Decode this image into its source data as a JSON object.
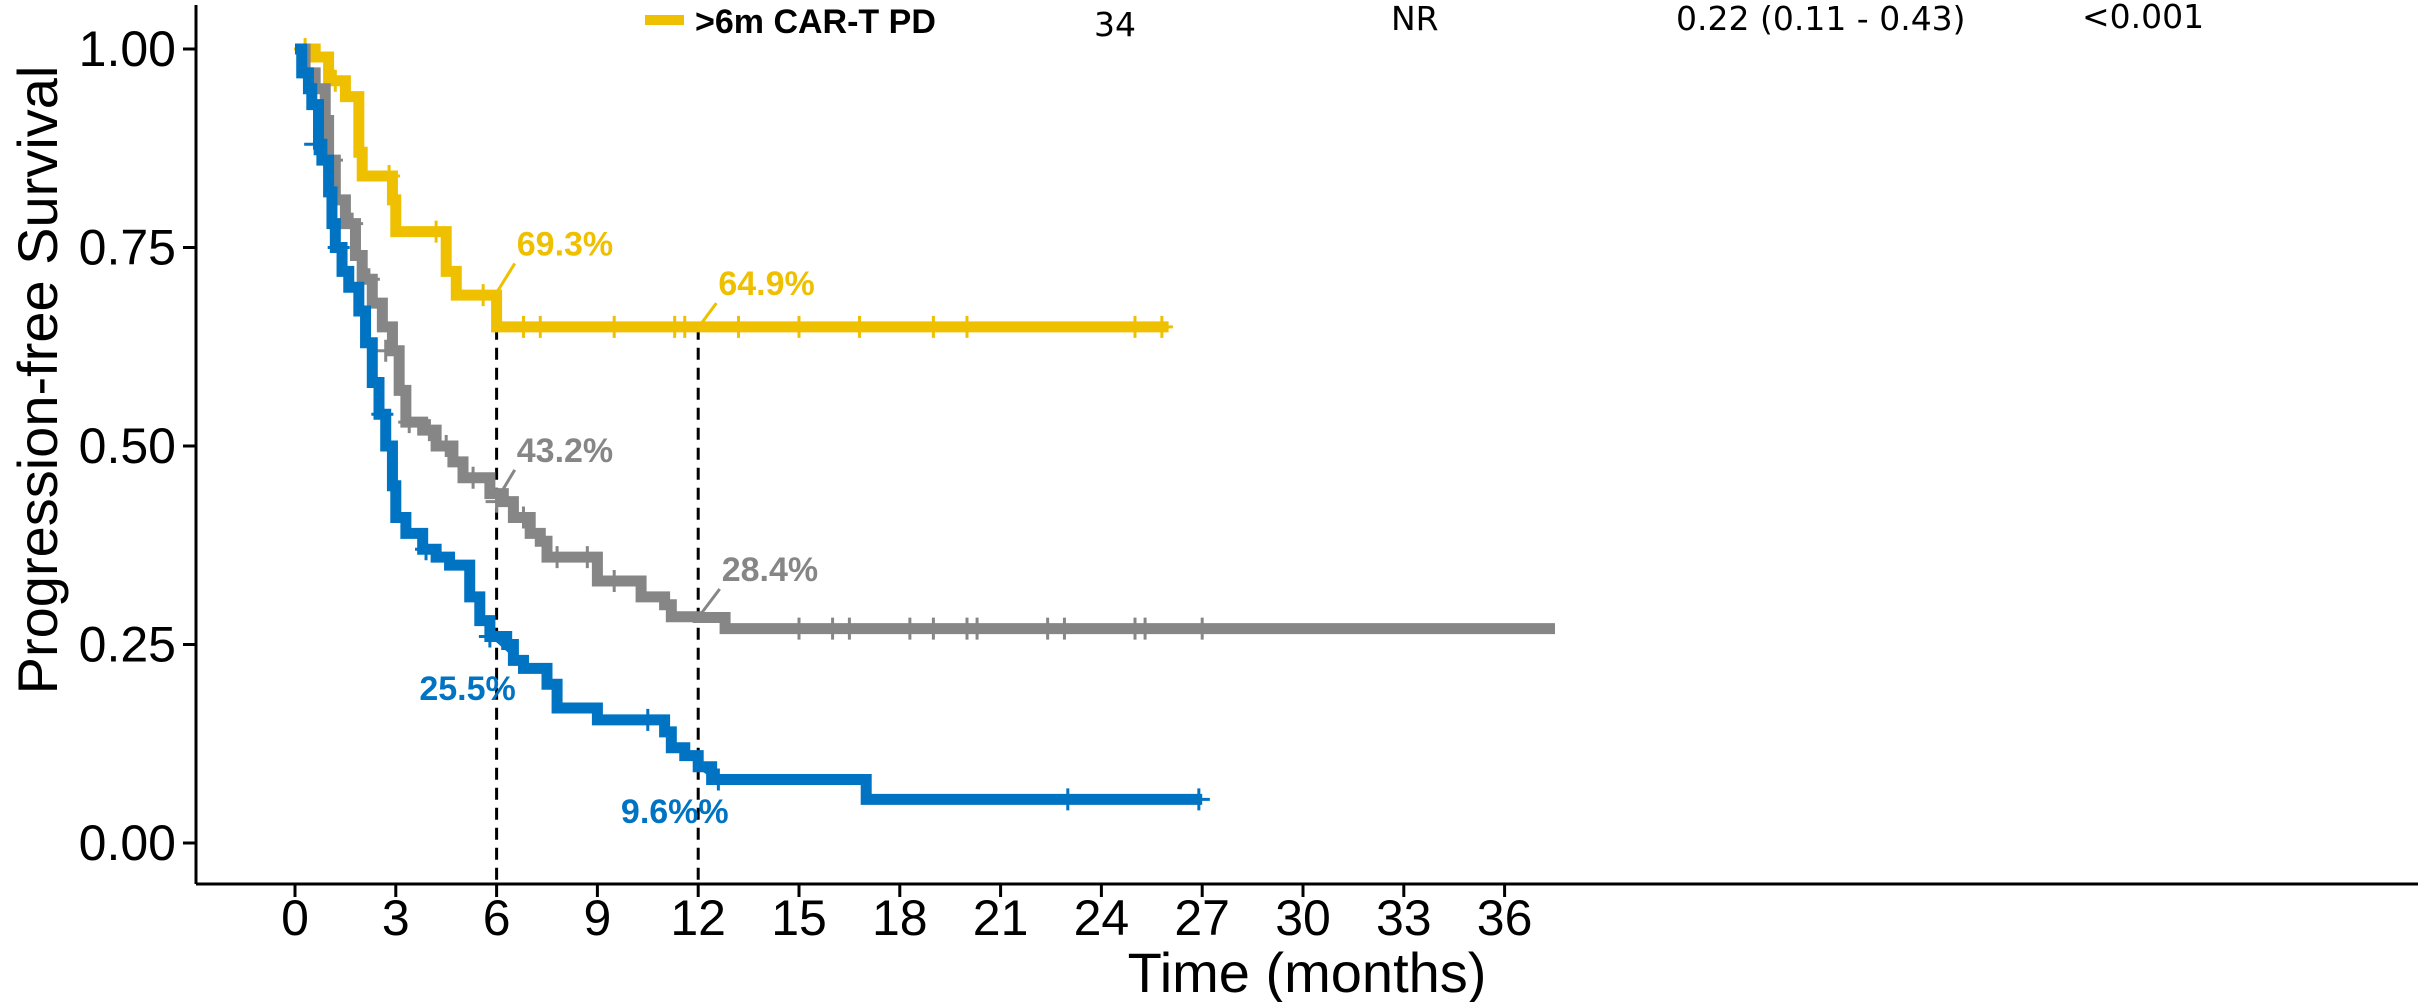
{
  "chart_data": {
    "type": "line",
    "subtype": "kaplan-meier",
    "xlabel": "Time (months)",
    "ylabel": "Progression-free Survival",
    "xlim": [
      -1,
      37.5
    ],
    "ylim": [
      -0.05,
      1.05
    ],
    "xticks": [
      0,
      3,
      6,
      9,
      12,
      15,
      18,
      21,
      24,
      27,
      30,
      33,
      36
    ],
    "yticks": [
      0.0,
      0.25,
      0.5,
      0.75,
      1.0
    ],
    "ytick_labels": [
      "0.00",
      "0.25",
      "0.50",
      "0.75",
      "1.00"
    ],
    "legend_row": {
      "name": ">6m CAR-T PD",
      "color": "#EFC000",
      "n": "34",
      "median": "NR",
      "hr_ci": "0.22 (0.11 - 0.43)",
      "p": "<0.001"
    },
    "vlines": [
      6,
      12
    ],
    "series": [
      {
        "color": "#EFC000",
        "steps": [
          [
            0,
            1.0
          ],
          [
            0.6,
            0.99
          ],
          [
            1.0,
            0.96
          ],
          [
            1.5,
            0.94
          ],
          [
            1.9,
            0.87
          ],
          [
            2.0,
            0.84
          ],
          [
            2.9,
            0.81
          ],
          [
            3.0,
            0.77
          ],
          [
            4.5,
            0.72
          ],
          [
            4.8,
            0.69
          ],
          [
            6.0,
            0.65
          ],
          [
            26.0,
            0.65
          ]
        ],
        "censors": [
          [
            0.3,
            1.0
          ],
          [
            1.2,
            0.96
          ],
          [
            2.8,
            0.84
          ],
          [
            4.2,
            0.77
          ],
          [
            5.6,
            0.69
          ],
          [
            6.8,
            0.65
          ],
          [
            7.3,
            0.65
          ],
          [
            9.5,
            0.65
          ],
          [
            11.3,
            0.65
          ],
          [
            11.6,
            0.65
          ],
          [
            13.2,
            0.65
          ],
          [
            15.0,
            0.65
          ],
          [
            16.8,
            0.65
          ],
          [
            19.0,
            0.65
          ],
          [
            20.0,
            0.65
          ],
          [
            25.0,
            0.65
          ],
          [
            25.8,
            0.65
          ]
        ]
      },
      {
        "color": "#868686",
        "steps": [
          [
            0,
            1.0
          ],
          [
            0.3,
            0.97
          ],
          [
            0.6,
            0.95
          ],
          [
            0.9,
            0.91
          ],
          [
            1.0,
            0.86
          ],
          [
            1.2,
            0.81
          ],
          [
            1.5,
            0.78
          ],
          [
            1.8,
            0.74
          ],
          [
            2.0,
            0.71
          ],
          [
            2.3,
            0.68
          ],
          [
            2.6,
            0.65
          ],
          [
            2.9,
            0.62
          ],
          [
            3.1,
            0.57
          ],
          [
            3.3,
            0.53
          ],
          [
            3.8,
            0.52
          ],
          [
            4.2,
            0.5
          ],
          [
            4.7,
            0.48
          ],
          [
            5.0,
            0.46
          ],
          [
            5.8,
            0.44
          ],
          [
            6.2,
            0.43
          ],
          [
            6.5,
            0.41
          ],
          [
            7.0,
            0.39
          ],
          [
            7.3,
            0.38
          ],
          [
            7.5,
            0.36
          ],
          [
            8.0,
            0.36
          ],
          [
            9.0,
            0.33
          ],
          [
            10.0,
            0.33
          ],
          [
            10.3,
            0.31
          ],
          [
            11.0,
            0.3
          ],
          [
            11.2,
            0.285
          ],
          [
            12.0,
            0.284
          ],
          [
            12.8,
            0.27
          ],
          [
            37.5,
            0.27
          ]
        ],
        "censors": [
          [
            0.6,
            0.95
          ],
          [
            1.1,
            0.86
          ],
          [
            1.7,
            0.78
          ],
          [
            2.2,
            0.71
          ],
          [
            2.7,
            0.62
          ],
          [
            3.4,
            0.53
          ],
          [
            4.0,
            0.52
          ],
          [
            4.5,
            0.5
          ],
          [
            5.3,
            0.46
          ],
          [
            6.0,
            0.43
          ],
          [
            6.8,
            0.41
          ],
          [
            7.8,
            0.36
          ],
          [
            8.7,
            0.36
          ],
          [
            9.5,
            0.33
          ],
          [
            15.0,
            0.27
          ],
          [
            16.0,
            0.27
          ],
          [
            16.5,
            0.27
          ],
          [
            18.3,
            0.27
          ],
          [
            19.0,
            0.27
          ],
          [
            20.0,
            0.27
          ],
          [
            20.3,
            0.27
          ],
          [
            22.4,
            0.27
          ],
          [
            22.9,
            0.27
          ],
          [
            25.0,
            0.27
          ],
          [
            25.3,
            0.27
          ],
          [
            27.0,
            0.27
          ]
        ]
      },
      {
        "color": "#0073C2",
        "steps": [
          [
            0,
            1.0
          ],
          [
            0.2,
            0.97
          ],
          [
            0.4,
            0.95
          ],
          [
            0.5,
            0.93
          ],
          [
            0.7,
            0.88
          ],
          [
            0.8,
            0.86
          ],
          [
            1.0,
            0.82
          ],
          [
            1.1,
            0.78
          ],
          [
            1.2,
            0.75
          ],
          [
            1.4,
            0.72
          ],
          [
            1.6,
            0.7
          ],
          [
            1.9,
            0.67
          ],
          [
            2.1,
            0.63
          ],
          [
            2.3,
            0.58
          ],
          [
            2.5,
            0.54
          ],
          [
            2.7,
            0.5
          ],
          [
            2.9,
            0.45
          ],
          [
            3.0,
            0.41
          ],
          [
            3.3,
            0.39
          ],
          [
            3.8,
            0.37
          ],
          [
            4.2,
            0.36
          ],
          [
            4.6,
            0.35
          ],
          [
            5.2,
            0.31
          ],
          [
            5.5,
            0.28
          ],
          [
            5.8,
            0.26
          ],
          [
            6.3,
            0.25
          ],
          [
            6.5,
            0.23
          ],
          [
            6.8,
            0.22
          ],
          [
            7.5,
            0.2
          ],
          [
            7.8,
            0.17
          ],
          [
            8.5,
            0.17
          ],
          [
            9.0,
            0.155
          ],
          [
            11.0,
            0.14
          ],
          [
            11.2,
            0.12
          ],
          [
            11.6,
            0.11
          ],
          [
            12.0,
            0.096
          ],
          [
            12.4,
            0.08
          ],
          [
            17.0,
            0.055
          ],
          [
            27.0,
            0.055
          ]
        ],
        "censors": [
          [
            0.6,
            0.88
          ],
          [
            1.3,
            0.75
          ],
          [
            2.6,
            0.54
          ],
          [
            3.9,
            0.37
          ],
          [
            5.8,
            0.26
          ],
          [
            10.5,
            0.155
          ],
          [
            12.6,
            0.08
          ],
          [
            23.0,
            0.055
          ],
          [
            26.9,
            0.055
          ]
        ]
      }
    ],
    "annotations": [
      {
        "text": "69.3%",
        "color": "#EFC000",
        "x": 6,
        "y": 0.693,
        "tx": 6.6,
        "ty": 0.74
      },
      {
        "text": "64.9%",
        "color": "#EFC000",
        "x": 12,
        "y": 0.649,
        "tx": 12.6,
        "ty": 0.69
      },
      {
        "text": "43.2%",
        "color": "#868686",
        "x": 6,
        "y": 0.432,
        "tx": 6.6,
        "ty": 0.48
      },
      {
        "text": "28.4%",
        "color": "#868686",
        "x": 12,
        "y": 0.284,
        "tx": 12.7,
        "ty": 0.33
      },
      {
        "text": "25.5%",
        "color": "#0073C2",
        "x": 6,
        "y": 0.255,
        "tx": 3.7,
        "ty": 0.18
      },
      {
        "text": "9.6%%",
        "color": "#0073C2",
        "x": 12,
        "y": 0.096,
        "tx": 9.7,
        "ty": 0.025
      }
    ]
  }
}
